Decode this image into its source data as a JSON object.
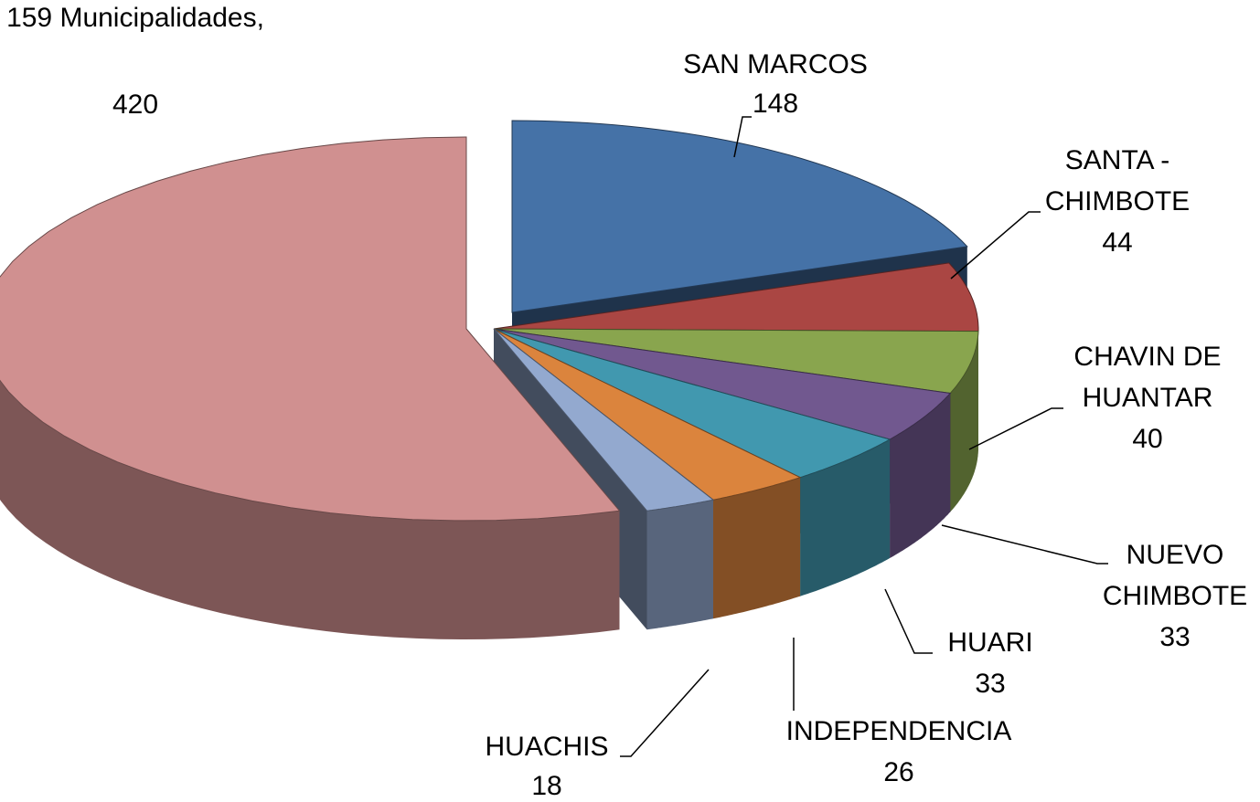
{
  "chart_data": {
    "type": "pie",
    "categories": [
      "SAN MARCOS",
      "SANTA - CHIMBOTE",
      "CHAVIN DE HUANTAR",
      "NUEVO CHIMBOTE",
      "HUARI",
      "INDEPENDENCIA",
      "HUACHIS",
      "159 Municipalidades,"
    ],
    "values": [
      148,
      44,
      40,
      33,
      33,
      26,
      18,
      420
    ],
    "colors": [
      "#4572a7",
      "#aa4643",
      "#89a54e",
      "#71588f",
      "#4198af",
      "#db843d",
      "#93a9cf",
      "#d09090"
    ],
    "three_d": true
  }
}
